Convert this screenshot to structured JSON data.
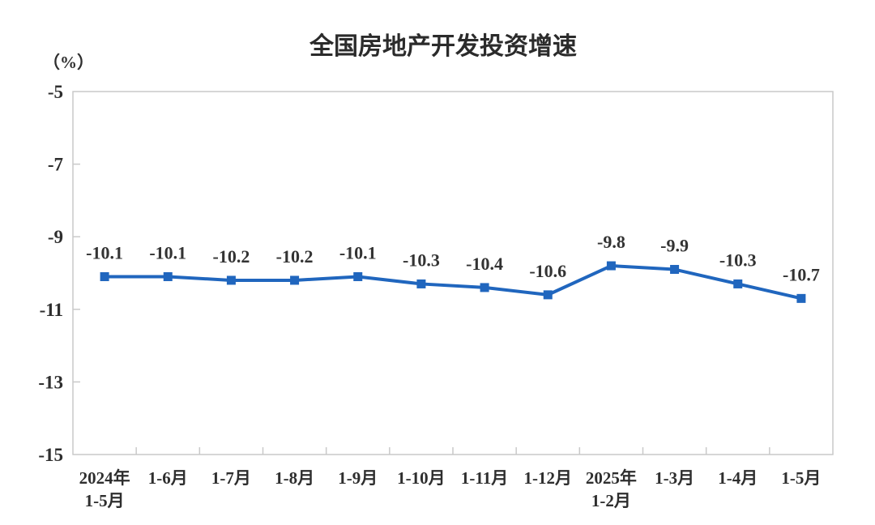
{
  "chart_data": {
    "type": "line",
    "title": "全国房地产开发投资增速",
    "unit_label": "（%）",
    "categories": [
      [
        "2024年",
        "1-5月"
      ],
      [
        "1-6月"
      ],
      [
        "1-7月"
      ],
      [
        "1-8月"
      ],
      [
        "1-9月"
      ],
      [
        "1-10月"
      ],
      [
        "1-11月"
      ],
      [
        "1-12月"
      ],
      [
        "2025年",
        "1-2月"
      ],
      [
        "1-3月"
      ],
      [
        "1-4月"
      ],
      [
        "1-5月"
      ]
    ],
    "values": [
      -10.1,
      -10.1,
      -10.2,
      -10.2,
      -10.1,
      -10.3,
      -10.4,
      -10.6,
      -9.8,
      -9.9,
      -10.3,
      -10.7
    ],
    "data_labels": [
      "-10.1",
      "-10.1",
      "-10.2",
      "-10.2",
      "-10.1",
      "-10.3",
      "-10.4",
      "-10.6",
      "-9.8",
      "-9.9",
      "-10.3",
      "-10.7"
    ],
    "ylim": [
      -15,
      -5
    ],
    "y_ticks": [
      -5,
      -7,
      -9,
      -11,
      -13,
      -15
    ],
    "y_tick_labels": [
      "-5",
      "-7",
      "-9",
      "-11",
      "-13",
      "-15"
    ],
    "grid": false,
    "legend_position": "none",
    "line_color": "#2066be",
    "marker": "square",
    "border_color": "#c9c9c9",
    "text_color": "#333333"
  }
}
